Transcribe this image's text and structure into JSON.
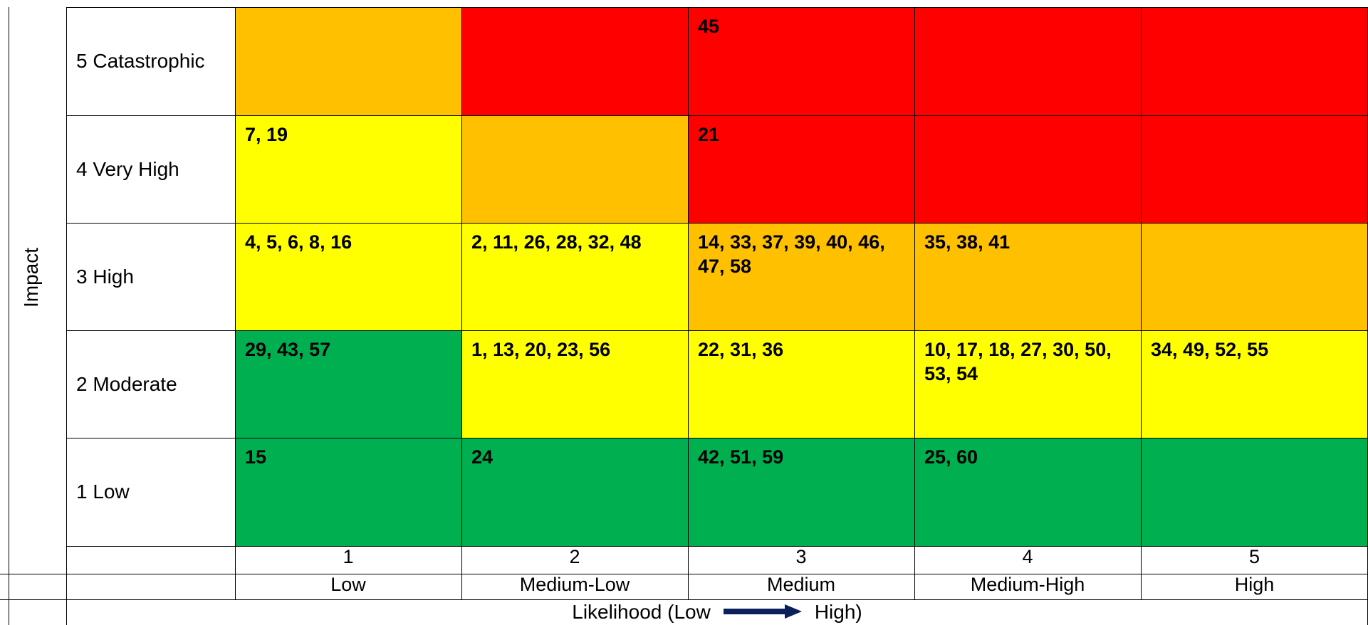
{
  "chart_data": {
    "type": "heatmap",
    "title": "",
    "ylabel": "Impact",
    "xlabel_prefix": "Likelihood (Low",
    "xlabel_suffix": "High)",
    "arrow_color": "#0b1f5c",
    "impact_levels": [
      "5 Catastrophic",
      "4 Very High",
      "3 High",
      "2 Moderate",
      "1 Low"
    ],
    "likelihood_numbers": [
      "1",
      "2",
      "3",
      "4",
      "5"
    ],
    "likelihood_categories": [
      "Low",
      "Medium-Low",
      "Medium",
      "Medium-High",
      "High"
    ],
    "colors": {
      "green": "#00b050",
      "yellow": "#ffff00",
      "orange": "#ffc000",
      "red": "#ff0000"
    },
    "cells": [
      [
        "orange",
        "red",
        "red",
        "red",
        "red"
      ],
      [
        "yellow",
        "orange",
        "red",
        "red",
        "red"
      ],
      [
        "yellow",
        "yellow",
        "orange",
        "orange",
        "orange"
      ],
      [
        "green",
        "yellow",
        "yellow",
        "yellow",
        "yellow"
      ],
      [
        "green",
        "green",
        "green",
        "green",
        "green"
      ]
    ],
    "values": [
      [
        "",
        "",
        "45",
        "",
        ""
      ],
      [
        "7, 19",
        "",
        "21",
        "",
        ""
      ],
      [
        "4, 5, 6, 8, 16",
        "2, 11, 26, 28, 32, 48",
        "14, 33, 37, 39, 40, 46, 47, 58",
        "35, 38, 41",
        ""
      ],
      [
        "29, 43, 57",
        "1, 13, 20, 23, 56",
        "22, 31, 36",
        "10, 17, 18, 27, 30, 50, 53, 54",
        "34, 49, 52, 55"
      ],
      [
        "15",
        "24",
        "42, 51, 59",
        "25, 60",
        ""
      ]
    ]
  }
}
